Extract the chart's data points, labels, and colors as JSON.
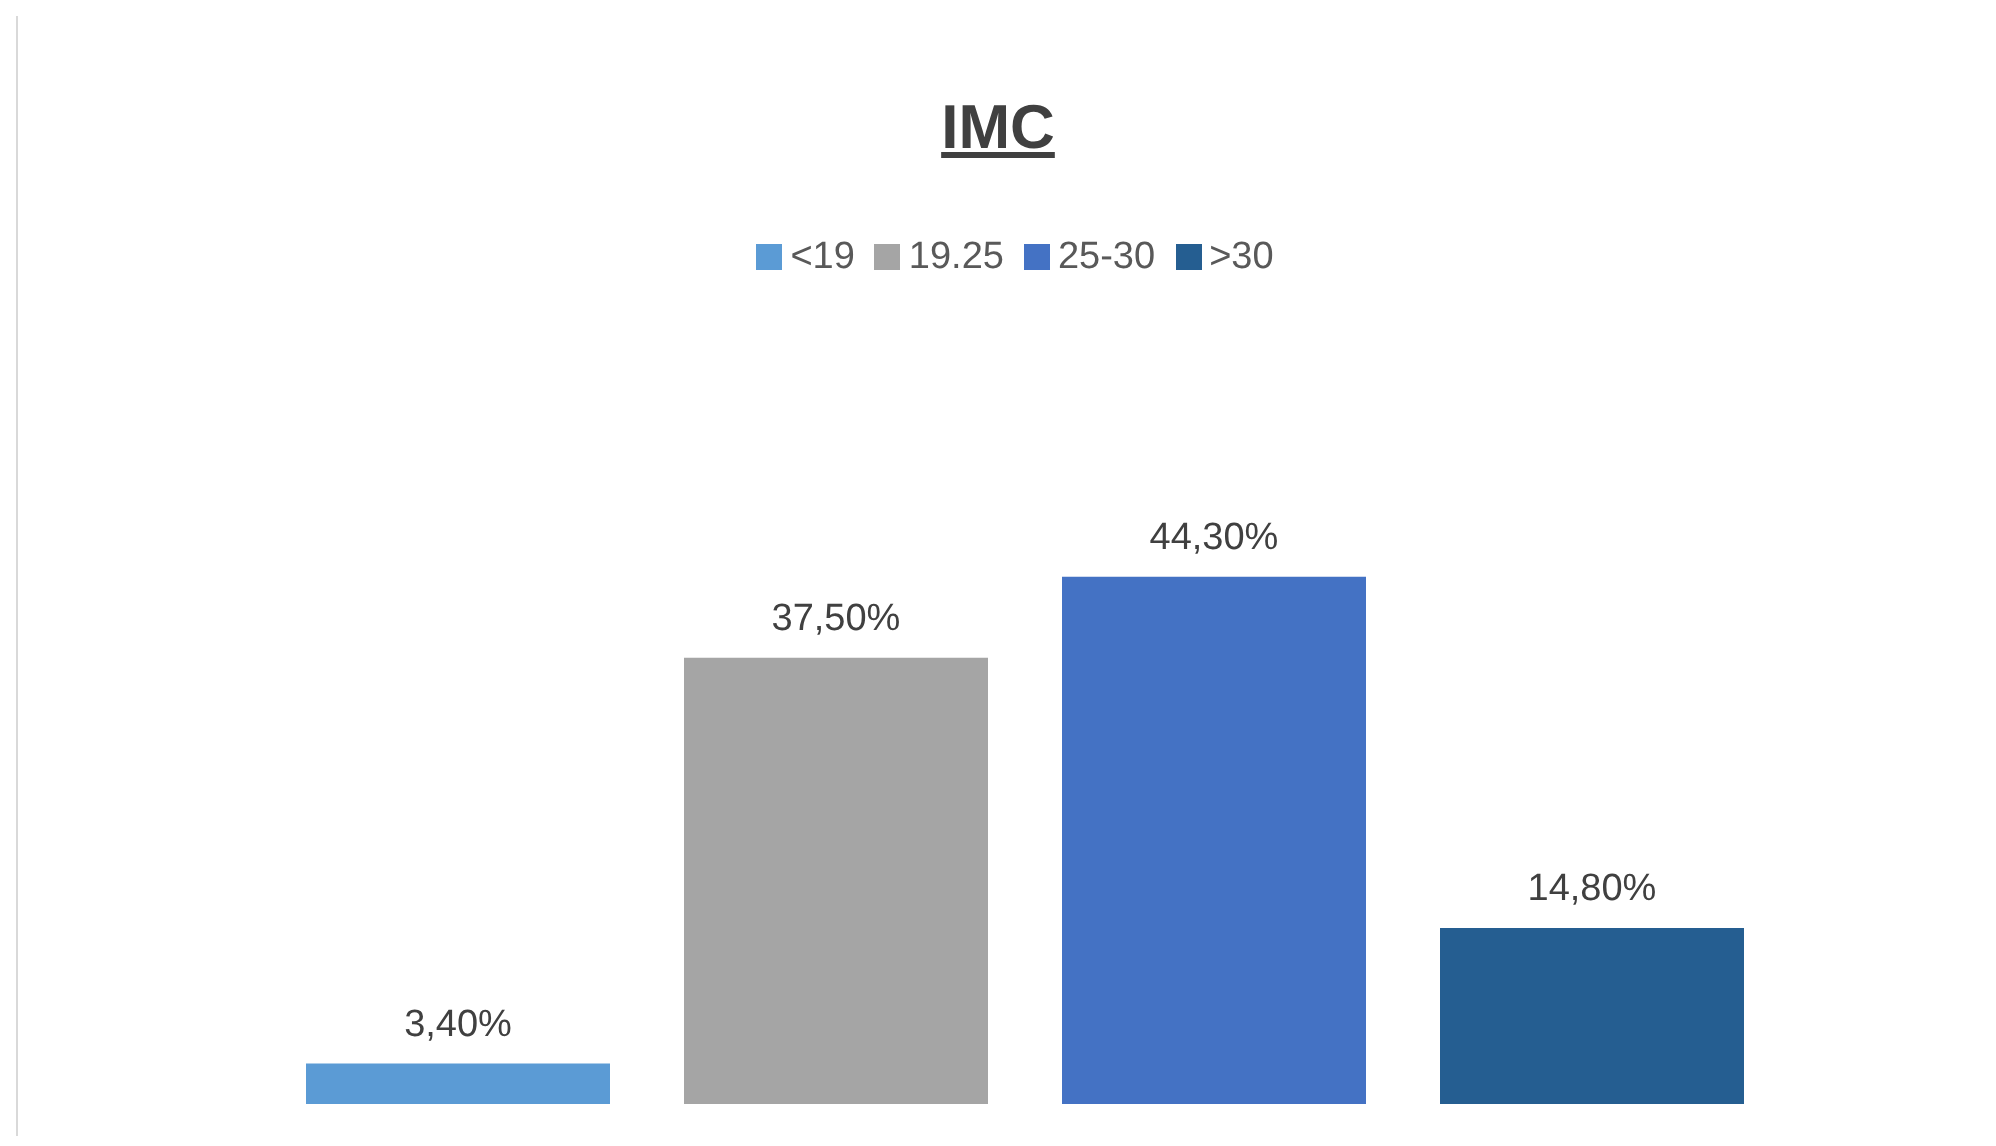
{
  "chart_data": {
    "type": "bar",
    "title": "IMC",
    "categories": [
      null
    ],
    "legend": "top",
    "series": [
      {
        "name": "<19",
        "color": "#5b9bd5",
        "values": [
          3.4
        ],
        "value_labels": [
          "3,40%"
        ]
      },
      {
        "name": "19.25",
        "color": "#a5a5a5",
        "values": [
          37.5
        ],
        "value_labels": [
          "37,50%"
        ]
      },
      {
        "name": "25-30",
        "color": "#4472c4",
        "values": [
          44.3
        ],
        "value_labels": [
          "44,30%"
        ]
      },
      {
        "name": ">30",
        "color": "#255e91",
        "values": [
          14.8
        ],
        "value_labels": [
          "14,80%"
        ]
      }
    ]
  }
}
